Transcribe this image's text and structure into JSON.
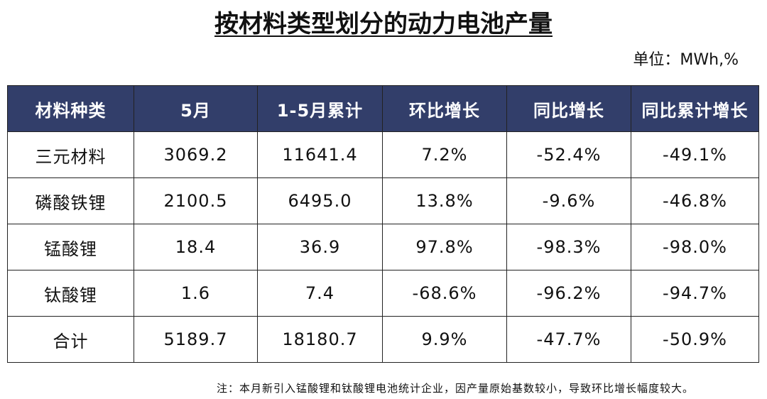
{
  "header": {
    "title": "按材料类型划分的动力电池产量",
    "unit": "单位：MWh,%"
  },
  "table": {
    "columns": [
      "材料种类",
      "5月",
      "1-5月累计",
      "环比增长",
      "同比增长",
      "同比累计增长"
    ],
    "rows": [
      [
        "三元材料",
        "3069.2",
        "11641.4",
        "7.2%",
        "-52.4%",
        "-49.1%"
      ],
      [
        "磷酸铁锂",
        "2100.5",
        "6495.0",
        "13.8%",
        "-9.6%",
        "-46.8%"
      ],
      [
        "锰酸锂",
        "18.4",
        "36.9",
        "97.8%",
        "-98.3%",
        "-98.0%"
      ],
      [
        "钛酸锂",
        "1.6",
        "7.4",
        "-68.6%",
        "-96.2%",
        "-94.7%"
      ],
      [
        "合计",
        "5189.7",
        "18180.7",
        "9.9%",
        "-47.7%",
        "-50.9%"
      ]
    ]
  },
  "note": "注：本月新引入锰酸锂和钛酸锂电池统计企业，因产量原始基数较小，导致环比增长幅度较大。"
}
